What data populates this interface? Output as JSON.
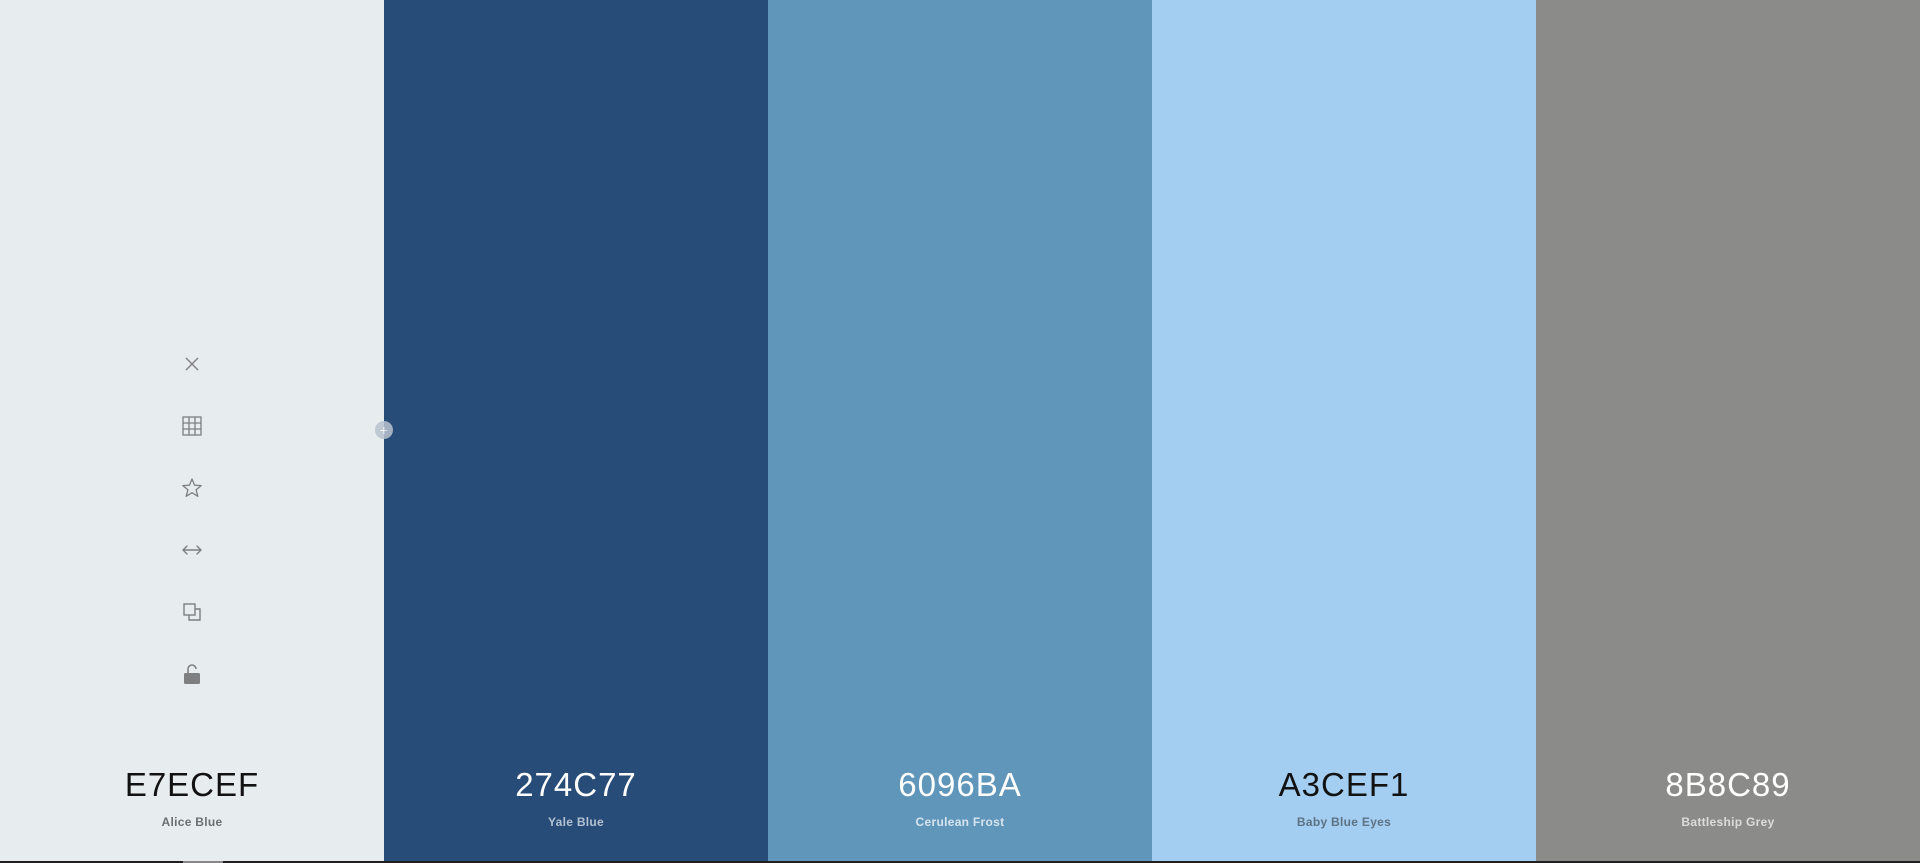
{
  "swatches": [
    {
      "hex": "E7ECEF",
      "name": "Alice Blue",
      "bg": "#e7ecef",
      "text": "#121212",
      "subtext": "#6b6f72"
    },
    {
      "hex": "274C77",
      "name": "Yale Blue",
      "bg": "#274c77",
      "text": "#ffffff",
      "subtext": "#b3c1d3"
    },
    {
      "hex": "6096BA",
      "name": "Cerulean Frost",
      "bg": "#6096ba",
      "text": "#ffffff",
      "subtext": "#d6e4ef"
    },
    {
      "hex": "A3CEF1",
      "name": "Baby Blue Eyes",
      "bg": "#a3cef1",
      "text": "#121212",
      "subtext": "#5d7283"
    },
    {
      "hex": "8B8C89",
      "name": "Battleship Grey",
      "bg": "#8b8c89",
      "text": "#ffffff",
      "subtext": "#dcdcdb"
    }
  ],
  "toolbar": {
    "icon_color": "#7d7f80",
    "icons": [
      "close-icon",
      "grid-icon",
      "star-icon",
      "arrows-horizontal-icon",
      "copy-icon",
      "unlock-icon"
    ]
  },
  "add_handle": {
    "icon": "plus-icon"
  }
}
